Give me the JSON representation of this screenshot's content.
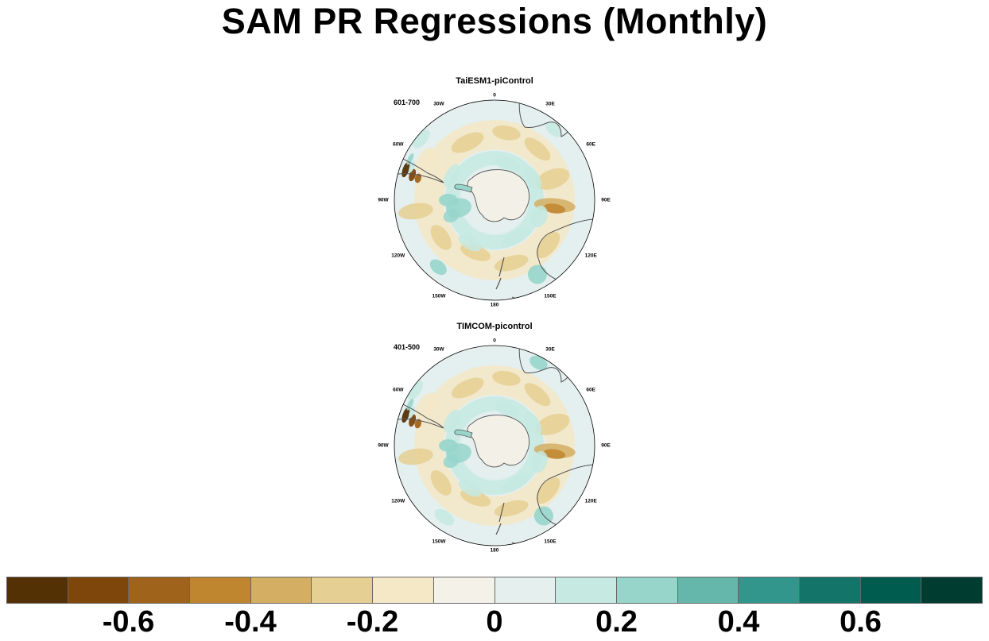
{
  "title": "SAM PR Regressions (Monthly)",
  "panels": [
    {
      "model": "TaiESM1-piControl",
      "period": "601-700"
    },
    {
      "model": "TIMCOM-picontrol",
      "period": "401-500"
    }
  ],
  "longitude_labels": [
    "0",
    "30E",
    "60E",
    "90E",
    "120E",
    "150E",
    "180",
    "150W",
    "120W",
    "90W",
    "60W",
    "30W"
  ],
  "colorbar": {
    "colors": [
      "#543005",
      "#7e460b",
      "#a0631b",
      "#c0862f",
      "#d4ae63",
      "#e6cf92",
      "#f4e8c7",
      "#f4f1e8",
      "#e4efee",
      "#c6e9e2",
      "#97d5cb",
      "#65b7ab",
      "#33968c",
      "#137569",
      "#005c4f",
      "#003c30"
    ],
    "tick_labels": [
      "-0.6",
      "-0.4",
      "-0.2",
      "0",
      "0.2",
      "0.4",
      "0.6"
    ]
  }
}
